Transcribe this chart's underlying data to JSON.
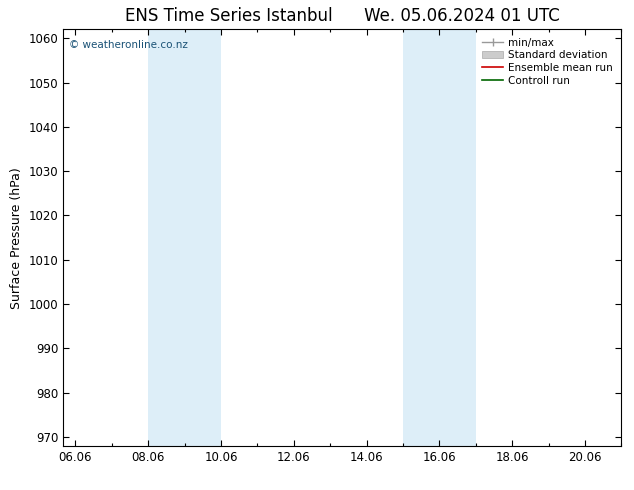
{
  "title": "ENS Time Series Istanbul",
  "title2": "We. 05.06.2024 01 UTC",
  "ylabel": "Surface Pressure (hPa)",
  "ylim": [
    968,
    1062
  ],
  "yticks": [
    970,
    980,
    990,
    1000,
    1010,
    1020,
    1030,
    1040,
    1050,
    1060
  ],
  "xtick_labels": [
    "06.06",
    "08.06",
    "10.06",
    "12.06",
    "14.06",
    "16.06",
    "18.06",
    "20.06"
  ],
  "xtick_positions": [
    0,
    2,
    4,
    6,
    8,
    10,
    12,
    14
  ],
  "xlim": [
    -0.33,
    15.0
  ],
  "shaded_regions": [
    {
      "xmin": 2,
      "xmax": 4,
      "color": "#ddeef8"
    },
    {
      "xmin": 9.0,
      "xmax": 11.0,
      "color": "#ddeef8"
    }
  ],
  "watermark": "© weatheronline.co.nz",
  "background_color": "#ffffff",
  "plot_bg_color": "#ffffff",
  "border_color": "#000000",
  "shade_color": "#ddeef8",
  "title_fontsize": 12,
  "label_fontsize": 9,
  "tick_fontsize": 8.5,
  "legend_fontsize": 7.5
}
